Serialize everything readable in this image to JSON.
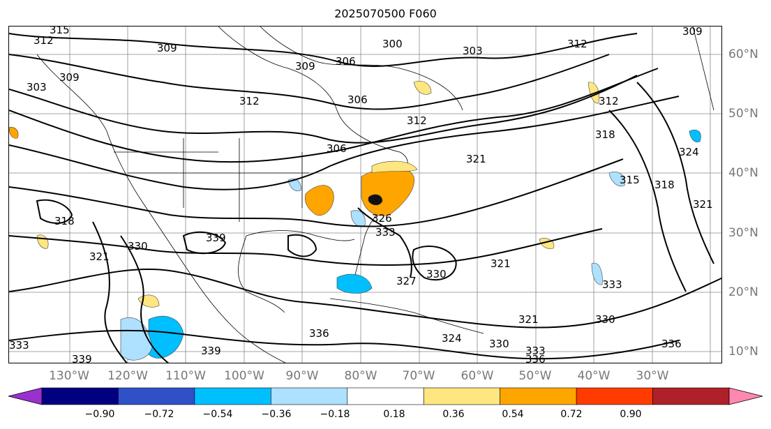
{
  "title": "2025070500 F060",
  "longitude_labels": [
    "130°W",
    "120°W",
    "110°W",
    "100°W",
    "90°W",
    "80°W",
    "70°W",
    "60°W",
    "50°W",
    "40°W",
    "30°W"
  ],
  "latitude_labels": [
    "60°N",
    "50°N",
    "40°N",
    "30°N",
    "20°N",
    "10°N"
  ],
  "contour_labels": [
    "315",
    "312",
    "309",
    "309",
    "303",
    "306",
    "309",
    "300",
    "303",
    "312",
    "306",
    "309",
    "312",
    "312",
    "318",
    "306",
    "312",
    "318",
    "324",
    "315",
    "321",
    "318",
    "339",
    "330",
    "321",
    "326",
    "333",
    "327",
    "330",
    "321",
    "333",
    "321",
    "330",
    "324",
    "330",
    "333",
    "336",
    "336",
    "339",
    "333",
    "339",
    "336",
    "321"
  ],
  "colorbar": {
    "ticks": [
      "−0.90",
      "−0.72",
      "−0.54",
      "−0.36",
      "−0.18",
      "0.18",
      "0.36",
      "0.54",
      "0.72",
      "0.90"
    ],
    "colors": [
      "#9b30d0",
      "#000080",
      "#3050c8",
      "#00bfff",
      "#aee0ff",
      "#ffffff",
      "#ffe680",
      "#ffa500",
      "#ff3c00",
      "#b0202a",
      "#ff88b0"
    ]
  }
}
